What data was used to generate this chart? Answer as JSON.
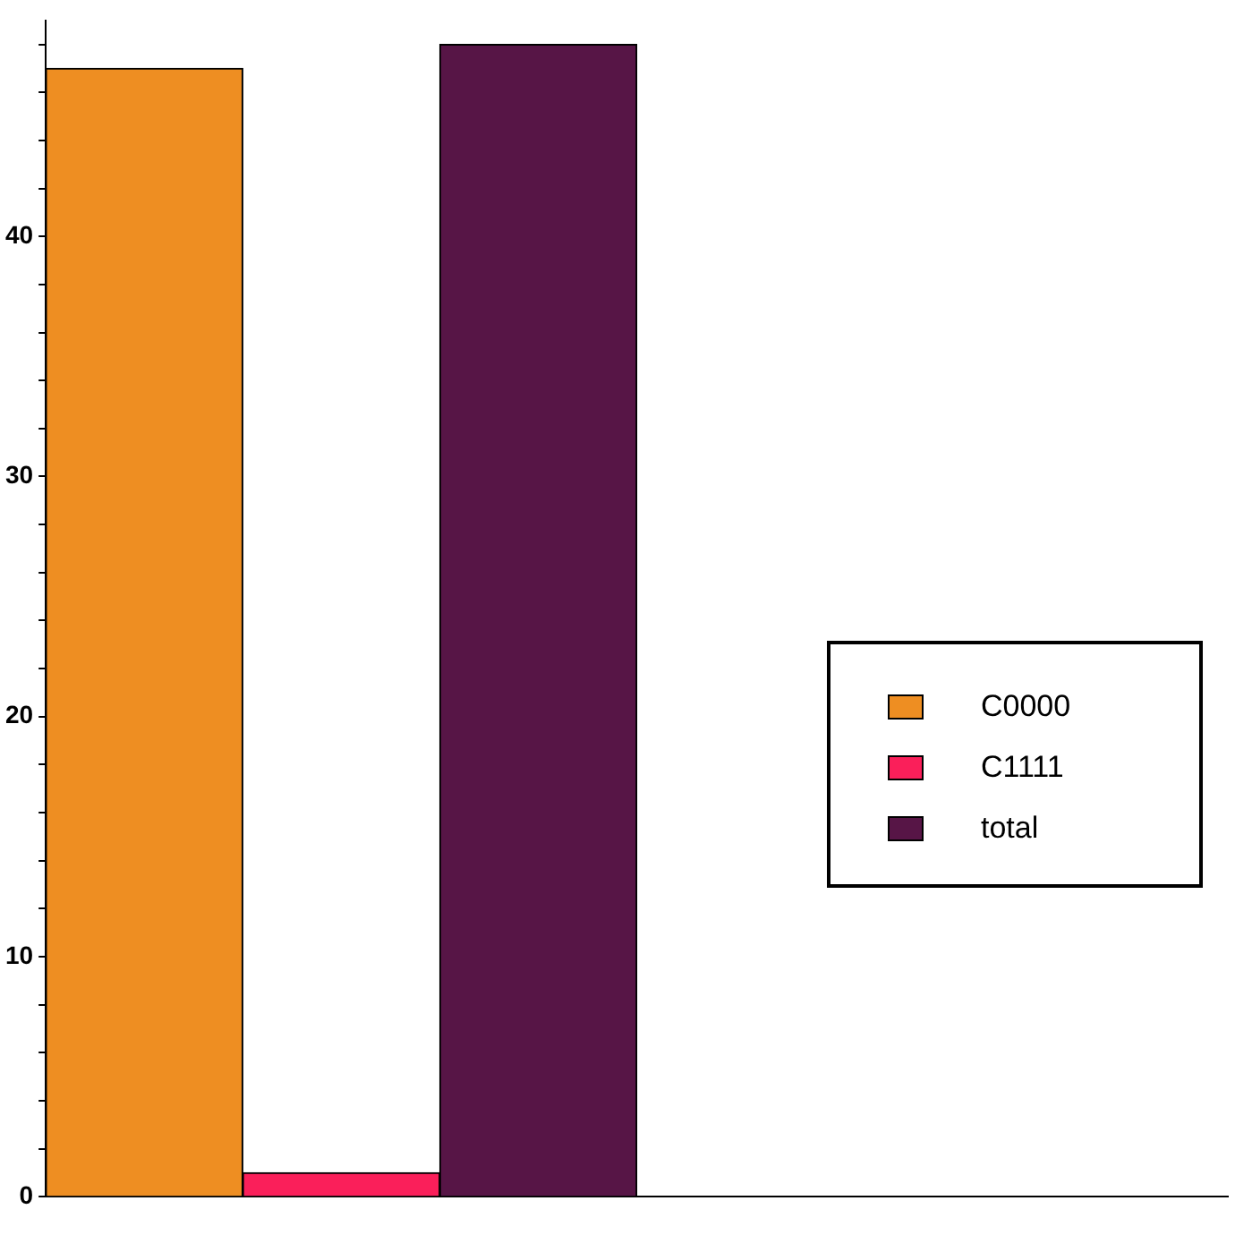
{
  "chart_data": {
    "type": "bar",
    "categories": [
      null,
      null
    ],
    "series": [
      {
        "name": "C0000",
        "color": "#ee8e22",
        "values": [
          47,
          null
        ]
      },
      {
        "name": "C1111",
        "color": "#fa1f5a",
        "values": [
          1,
          null
        ]
      },
      {
        "name": "total",
        "color": "#571546",
        "values": [
          48,
          null
        ]
      }
    ],
    "ylim": [
      0,
      49
    ],
    "yticks": [
      0,
      {
        "value": 2,
        "label": null
      },
      {
        "value": 4,
        "label": null
      },
      {
        "value": 6,
        "label": null
      },
      {
        "value": 8,
        "label": null
      },
      10,
      {
        "value": 12,
        "label": null
      },
      {
        "value": 14,
        "label": null
      },
      {
        "value": 16,
        "label": null
      },
      {
        "value": 18,
        "label": null
      },
      20,
      {
        "value": 22,
        "label": null
      },
      {
        "value": 24,
        "label": null
      },
      {
        "value": 26,
        "label": null
      },
      {
        "value": 28,
        "label": null
      },
      30,
      {
        "value": 32,
        "label": null
      },
      {
        "value": 34,
        "label": null
      },
      {
        "value": 36,
        "label": null
      },
      {
        "value": 38,
        "label": null
      },
      40,
      {
        "value": 42,
        "label": null
      },
      {
        "value": 44,
        "label": null
      },
      {
        "value": 46,
        "label": null
      },
      {
        "value": 48,
        "label": null
      }
    ],
    "grid": false,
    "legend": "right"
  }
}
